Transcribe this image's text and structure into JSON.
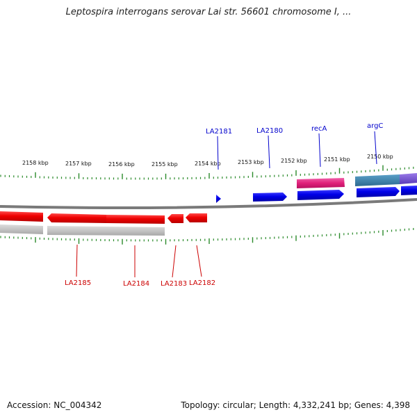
{
  "title": "Leptospira interrogans serovar Lai str. 56601 chromosome I, ...",
  "footer": {
    "accession": "Accession: NC_004342",
    "topology": "Topology: circular; Length: 4,332,241 bp; Genes: 4,398"
  },
  "colors": {
    "forward_gene": "#0000e0",
    "reverse_gene": "#ee0000",
    "rrna_gene": "#e0207a",
    "teal_gene": "#3c82a8",
    "purple_gene": "#7a5ad8",
    "backbone": "#808080",
    "tick": "#2a8a2a",
    "forward_label": "#0000cc",
    "reverse_label": "#cc0000"
  },
  "tick_labels": [
    "2158 kbp",
    "2157 kbp",
    "2156 kbp",
    "2155 kbp",
    "2154 kbp",
    "2153 kbp",
    "2152 kbp",
    "2151 kbp",
    "2150 kbp"
  ],
  "forward_labels": [
    "LA2181",
    "LA2180",
    "recA",
    "argC"
  ],
  "reverse_labels": [
    "LA2185",
    "LA2184",
    "LA2183",
    "LA2182"
  ]
}
